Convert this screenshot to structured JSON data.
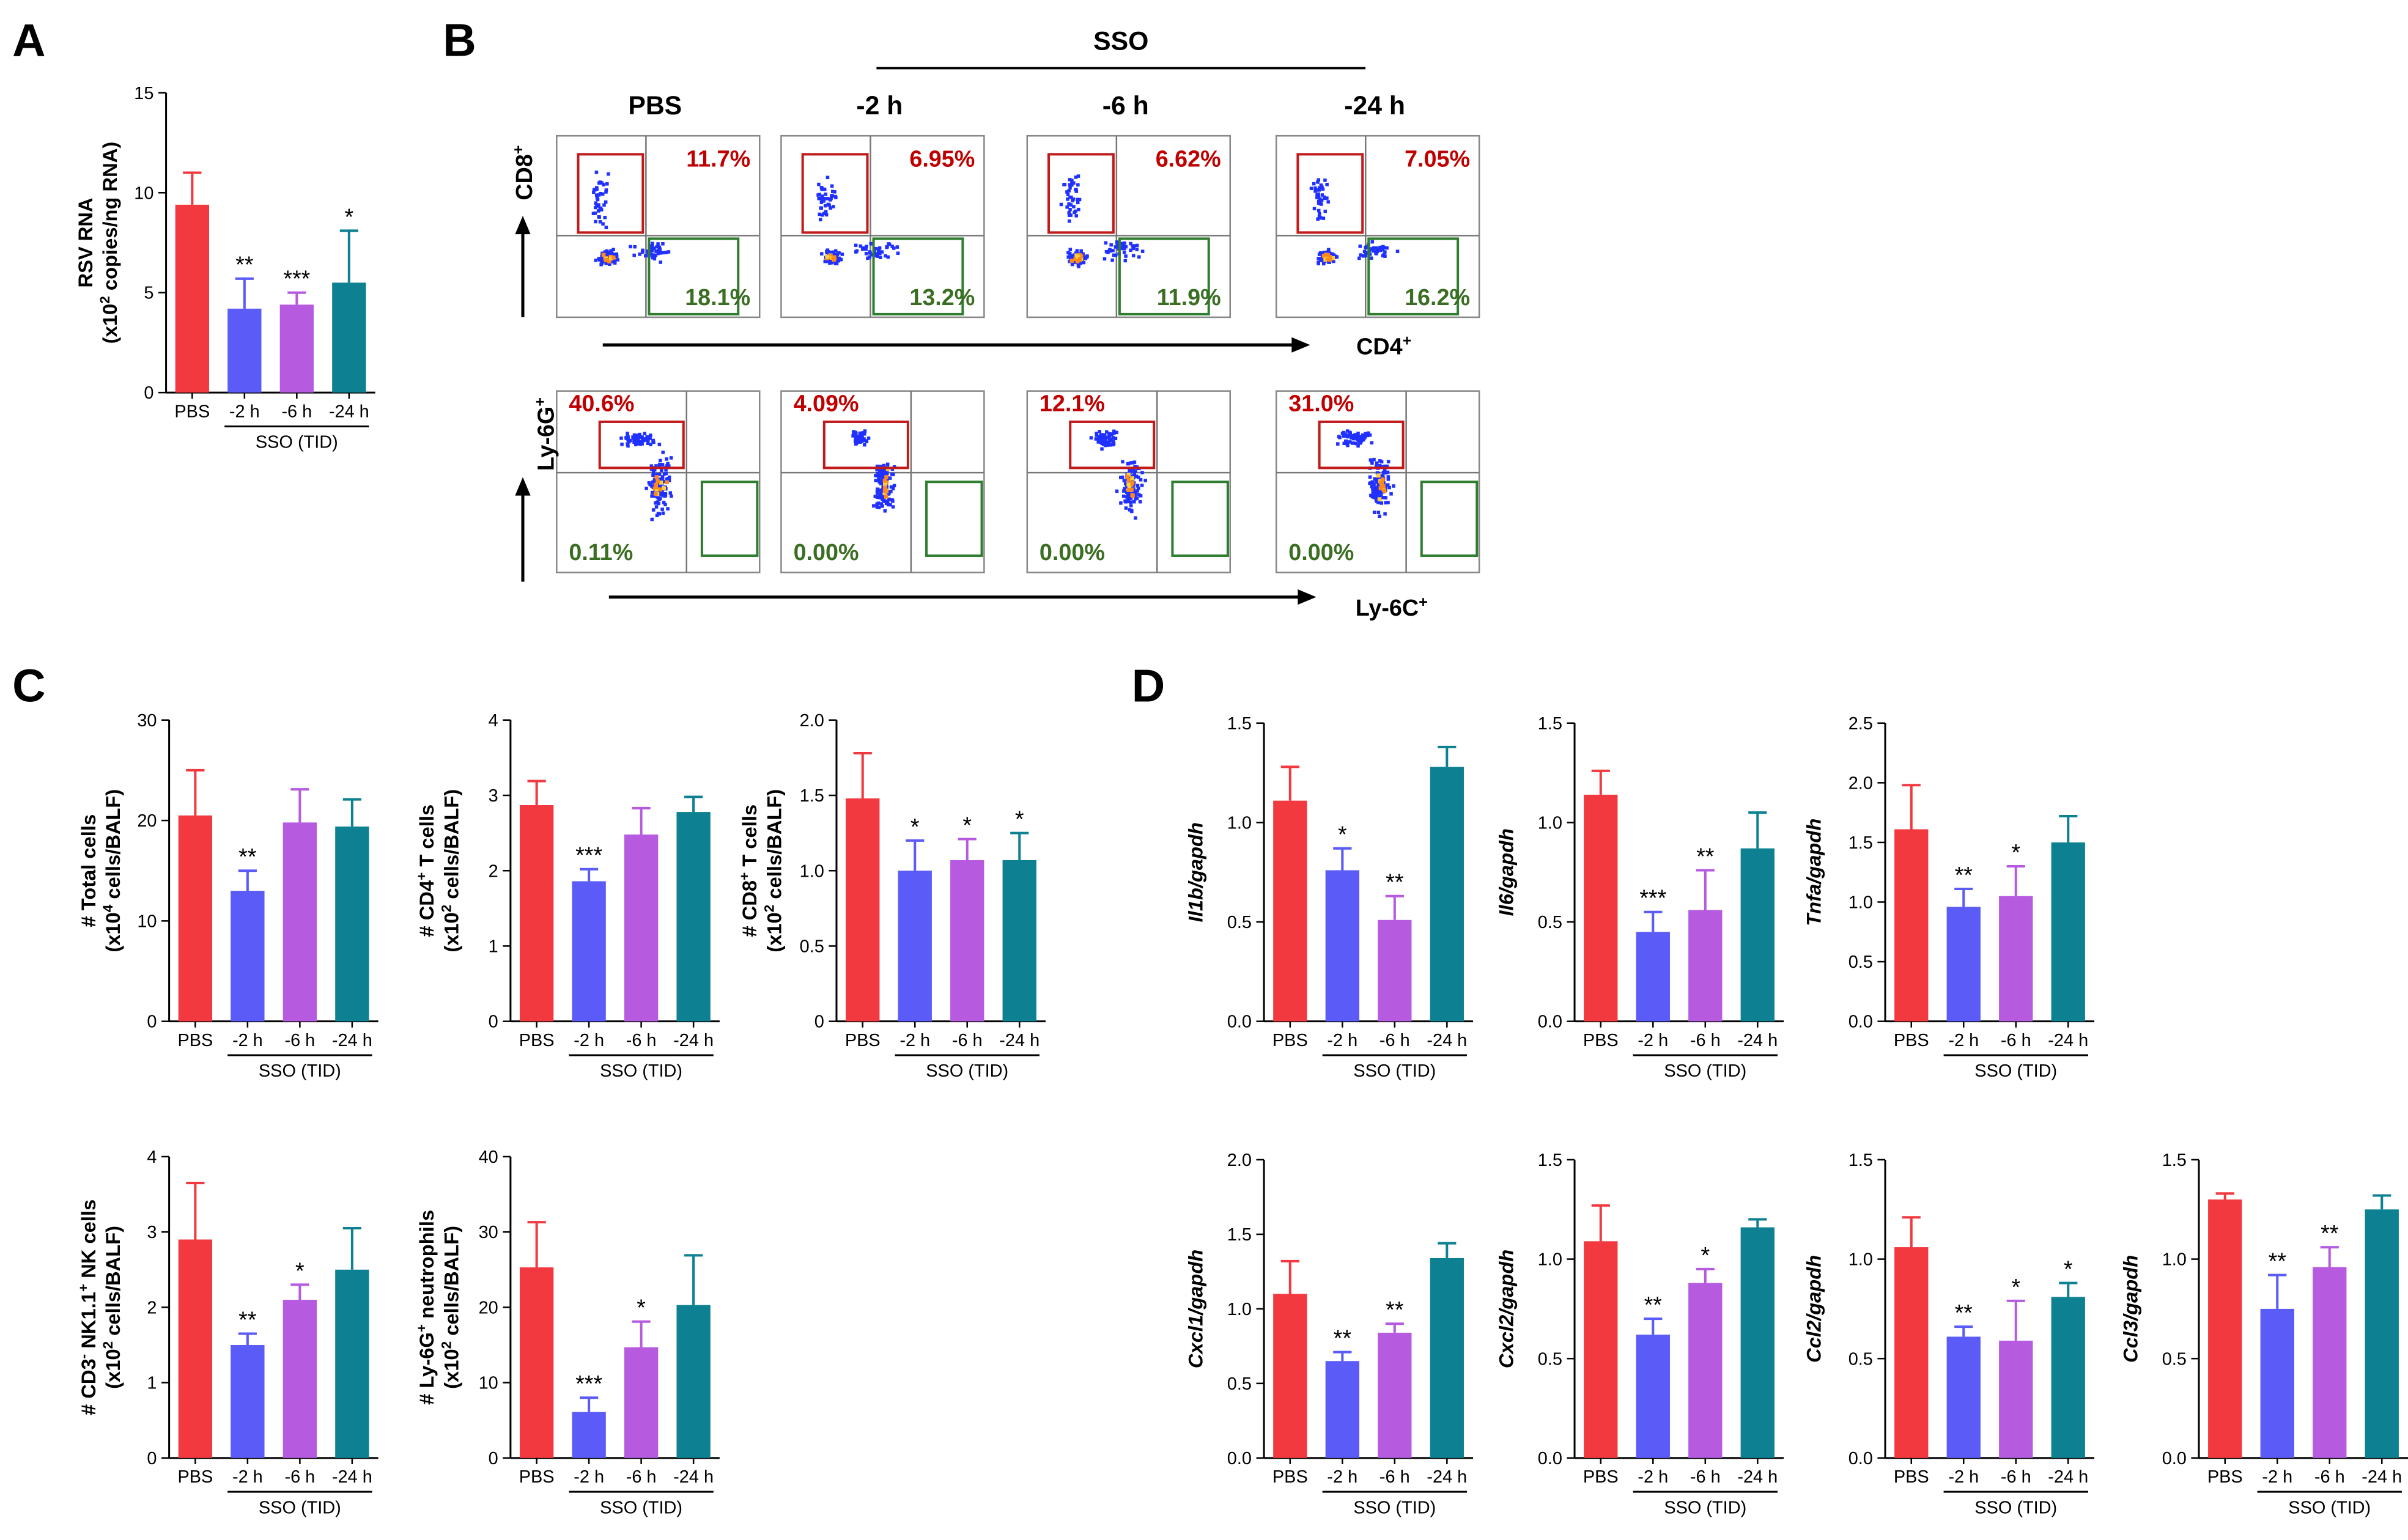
{
  "colors": {
    "pbs": "#f2393f",
    "h2": "#5b5bf7",
    "h6": "#b65be0",
    "h24": "#0d8191",
    "gate_red": "#c21a1a",
    "gate_green": "#2f7d2f",
    "text_red": "#c00000",
    "text_green": "#3a6e22"
  },
  "panel_letters": {
    "a": "A",
    "b": "B",
    "c": "C",
    "d": "D"
  },
  "flow": {
    "sso_label": "SSO",
    "columns": [
      "PBS",
      "-2 h",
      "-6 h",
      "-24 h"
    ],
    "row1": {
      "y_label": "CD8",
      "x_label": "CD4",
      "top_pcts": [
        "11.7%",
        "6.95%",
        "6.62%",
        "7.05%"
      ],
      "bottom_pcts": [
        "18.1%",
        "13.2%",
        "11.9%",
        "16.2%"
      ]
    },
    "row2": {
      "y_label": "Ly-6G",
      "x_label": "Ly-6C",
      "top_pcts": [
        "40.6%",
        "4.09%",
        "12.1%",
        "31.0%"
      ],
      "bottom_pcts": [
        "0.11%",
        "0.00%",
        "0.00%",
        "0.00%"
      ]
    },
    "plus": "+"
  },
  "chart_data": [
    {
      "id": "A_rsv",
      "type": "bar",
      "categories": [
        "PBS",
        "-2 h",
        "-6 h",
        "-24 h"
      ],
      "group_label": "SSO (TID)",
      "values": [
        9.4,
        4.2,
        4.4,
        5.5
      ],
      "errors": [
        1.6,
        1.5,
        0.6,
        2.6
      ],
      "sig": [
        "",
        "**",
        "***",
        "*"
      ],
      "ylim": [
        0,
        15
      ],
      "yticks": [
        "0",
        "5",
        "10",
        "15"
      ],
      "ylabel_lines": [
        "RSV RNA",
        "(x10",
        "2",
        " copies/ng RNA)"
      ]
    },
    {
      "id": "C_total",
      "type": "bar",
      "categories": [
        "PBS",
        "-2 h",
        "-6 h",
        "-24 h"
      ],
      "group_label": "SSO (TID)",
      "values": [
        20.5,
        13.0,
        19.8,
        19.4
      ],
      "errors": [
        4.5,
        2.0,
        3.3,
        2.7
      ],
      "sig": [
        "",
        "**",
        "",
        ""
      ],
      "ylim": [
        0,
        30
      ],
      "yticks": [
        "0",
        "10",
        "20",
        "30"
      ],
      "ylabel_lines": [
        "# Total  cells",
        "(x10",
        "4",
        " cells/BALF)"
      ]
    },
    {
      "id": "C_cd4",
      "type": "bar",
      "categories": [
        "PBS",
        "-2 h",
        "-6 h",
        "-24 h"
      ],
      "group_label": "SSO (TID)",
      "values": [
        2.87,
        1.86,
        2.48,
        2.78
      ],
      "errors": [
        0.32,
        0.16,
        0.35,
        0.2
      ],
      "sig": [
        "",
        "***",
        "",
        ""
      ],
      "ylim": [
        0,
        4
      ],
      "yticks": [
        "0",
        "1",
        "2",
        "3",
        "4"
      ],
      "ylabel_lines": [
        "# CD4",
        "+",
        " T cells",
        "(x10",
        "2",
        " cells/BALF)"
      ]
    },
    {
      "id": "C_cd8",
      "type": "bar",
      "categories": [
        "PBS",
        "-2 h",
        "-6 h",
        "-24 h"
      ],
      "group_label": "SSO (TID)",
      "values": [
        1.48,
        1.0,
        1.07,
        1.07
      ],
      "errors": [
        0.3,
        0.2,
        0.14,
        0.18
      ],
      "sig": [
        "",
        "*",
        "*",
        "*"
      ],
      "ylim": [
        0,
        2.0
      ],
      "yticks": [
        "0",
        "0.5",
        "1.0",
        "1.5",
        "2.0"
      ],
      "ylabel_lines": [
        "# CD8",
        "+",
        " T cells",
        "(x10",
        "2",
        " cells/BALF)"
      ]
    },
    {
      "id": "C_nk",
      "type": "bar",
      "categories": [
        "PBS",
        "-2 h",
        "-6 h",
        "-24 h"
      ],
      "group_label": "SSO (TID)",
      "values": [
        2.9,
        1.5,
        2.1,
        2.5
      ],
      "errors": [
        0.75,
        0.15,
        0.2,
        0.55
      ],
      "sig": [
        "",
        "**",
        "*",
        ""
      ],
      "ylim": [
        0,
        4
      ],
      "yticks": [
        "0",
        "1",
        "2",
        "3",
        "4"
      ],
      "ylabel_lines": [
        "# CD3",
        "-",
        " NK1.1",
        "+",
        " NK cells",
        "(x10",
        "2",
        " cells/BALF)"
      ]
    },
    {
      "id": "C_neut",
      "type": "bar",
      "categories": [
        "PBS",
        "-2 h",
        "-6 h",
        "-24 h"
      ],
      "group_label": "SSO (TID)",
      "values": [
        25.3,
        6.1,
        14.7,
        20.3
      ],
      "errors": [
        6.0,
        1.9,
        3.4,
        6.6
      ],
      "sig": [
        "",
        "***",
        "*",
        ""
      ],
      "ylim": [
        0,
        40
      ],
      "yticks": [
        "0",
        "10",
        "20",
        "30",
        "40"
      ],
      "ylabel_lines": [
        "# Ly-6G",
        "+",
        " neutrophils",
        "(x10",
        "2",
        " cells/BALF)"
      ]
    },
    {
      "id": "D_il1b",
      "type": "bar",
      "categories": [
        "PBS",
        "-2 h",
        "-6 h",
        "-24 h"
      ],
      "group_label": "SSO (TID)",
      "values": [
        1.11,
        0.76,
        0.51,
        1.28
      ],
      "errors": [
        0.17,
        0.11,
        0.12,
        0.1
      ],
      "sig": [
        "",
        "*",
        "**",
        ""
      ],
      "ylim": [
        0,
        1.5
      ],
      "yticks": [
        "0.0",
        "0.5",
        "1.0",
        "1.5"
      ],
      "ylabel_gene": "Il1b/gapdh"
    },
    {
      "id": "D_il6",
      "type": "bar",
      "categories": [
        "PBS",
        "-2 h",
        "-6 h",
        "-24 h"
      ],
      "group_label": "SSO (TID)",
      "values": [
        1.14,
        0.45,
        0.56,
        0.87
      ],
      "errors": [
        0.12,
        0.1,
        0.2,
        0.18
      ],
      "sig": [
        "",
        "***",
        "**",
        ""
      ],
      "ylim": [
        0,
        1.5
      ],
      "yticks": [
        "0.0",
        "0.5",
        "1.0",
        "1.5"
      ],
      "ylabel_gene": "Il6/gapdh"
    },
    {
      "id": "D_tnfa",
      "type": "bar",
      "categories": [
        "PBS",
        "-2 h",
        "-6 h",
        "-24 h"
      ],
      "group_label": "SSO (TID)",
      "values": [
        1.61,
        0.96,
        1.05,
        1.5
      ],
      "errors": [
        0.37,
        0.15,
        0.25,
        0.22
      ],
      "sig": [
        "",
        "**",
        "*",
        ""
      ],
      "ylim": [
        0,
        2.5
      ],
      "yticks": [
        "0.0",
        "0.5",
        "1.0",
        "1.5",
        "2.0",
        "2.5"
      ],
      "ylabel_gene": "Tnfa/gapdh"
    },
    {
      "id": "D_cxcl1",
      "type": "bar",
      "categories": [
        "PBS",
        "-2 h",
        "-6 h",
        "-24 h"
      ],
      "group_label": "SSO (TID)",
      "values": [
        1.1,
        0.65,
        0.84,
        1.34
      ],
      "errors": [
        0.22,
        0.06,
        0.06,
        0.1
      ],
      "sig": [
        "",
        "**",
        "**",
        ""
      ],
      "ylim": [
        0,
        2.0
      ],
      "yticks": [
        "0.0",
        "0.5",
        "1.0",
        "1.5",
        "2.0"
      ],
      "ylabel_gene": "Cxcl1/gapdh"
    },
    {
      "id": "D_cxcl2",
      "type": "bar",
      "categories": [
        "PBS",
        "-2 h",
        "-6 h",
        "-24 h"
      ],
      "group_label": "SSO (TID)",
      "values": [
        1.09,
        0.62,
        0.88,
        1.16
      ],
      "errors": [
        0.18,
        0.08,
        0.07,
        0.04
      ],
      "sig": [
        "",
        "**",
        "*",
        ""
      ],
      "ylim": [
        0,
        1.5
      ],
      "yticks": [
        "0.0",
        "0.5",
        "1.0",
        "1.5"
      ],
      "ylabel_gene": "Cxcl2/gapdh"
    },
    {
      "id": "D_ccl2",
      "type": "bar",
      "categories": [
        "PBS",
        "-2 h",
        "-6 h",
        "-24 h"
      ],
      "group_label": "SSO (TID)",
      "values": [
        1.06,
        0.61,
        0.59,
        0.81
      ],
      "errors": [
        0.15,
        0.05,
        0.2,
        0.07
      ],
      "sig": [
        "",
        "**",
        "*",
        "*"
      ],
      "ylim": [
        0,
        1.5
      ],
      "yticks": [
        "0.0",
        "0.5",
        "1.0",
        "1.5"
      ],
      "ylabel_gene": "Ccl2/gapdh"
    },
    {
      "id": "D_ccl3",
      "type": "bar",
      "categories": [
        "PBS",
        "-2 h",
        "-6 h",
        "-24 h"
      ],
      "group_label": "SSO (TID)",
      "values": [
        1.3,
        0.75,
        0.96,
        1.25
      ],
      "errors": [
        0.03,
        0.17,
        0.1,
        0.07
      ],
      "sig": [
        "",
        "**",
        "**",
        ""
      ],
      "ylim": [
        0,
        1.5
      ],
      "yticks": [
        "0.0",
        "0.5",
        "1.0",
        "1.5"
      ],
      "ylabel_gene": "Ccl3/gapdh"
    }
  ]
}
